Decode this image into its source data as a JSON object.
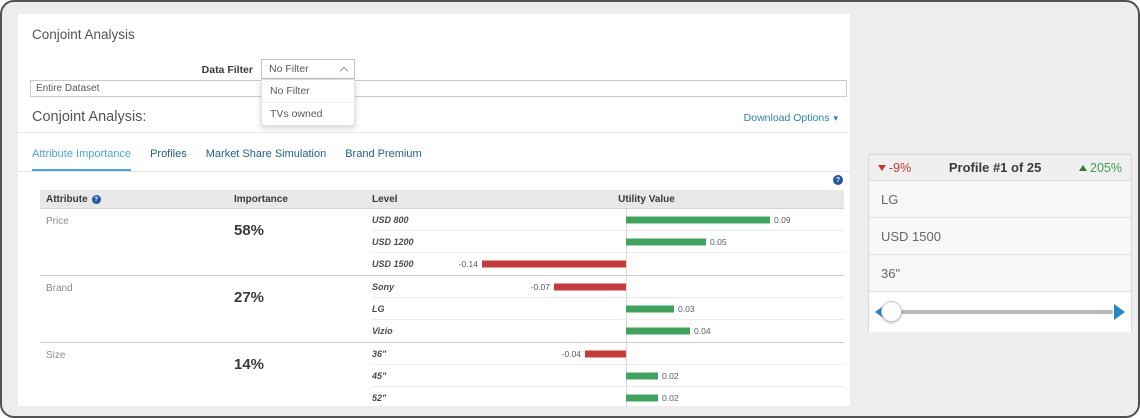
{
  "page": {
    "title": "Conjoint Analysis"
  },
  "filter": {
    "label": "Data Filter",
    "selected": "No Filter",
    "options": [
      "No Filter",
      "TVs owned"
    ]
  },
  "dataset_input": {
    "value": "Entire Dataset"
  },
  "section": {
    "heading": "Conjoint Analysis:",
    "download_label": "Download Options",
    "caret": "▾"
  },
  "tabs": [
    {
      "label": "Attribute Importance",
      "active": true
    },
    {
      "label": "Profiles",
      "active": false
    },
    {
      "label": "Market Share Simulation",
      "active": false
    },
    {
      "label": "Brand Premium",
      "active": false
    }
  ],
  "help_icon_glyph": "?",
  "table": {
    "headers": {
      "attribute": "Attribute",
      "importance": "Importance",
      "level": "Level",
      "utility": "Utility Value"
    },
    "groups": [
      {
        "attribute": "Price",
        "importance": "58%",
        "levels": [
          {
            "label": "USD 800",
            "value": 0.09
          },
          {
            "label": "USD 1200",
            "value": 0.05
          },
          {
            "label": "USD 1500",
            "value": -0.14
          }
        ]
      },
      {
        "attribute": "Brand",
        "importance": "27%",
        "levels": [
          {
            "label": "Sony",
            "value": -0.07
          },
          {
            "label": "LG",
            "value": 0.03
          },
          {
            "label": "Vizio",
            "value": 0.04
          }
        ]
      },
      {
        "attribute": "Size",
        "importance": "14%",
        "levels": [
          {
            "label": "36\"",
            "value": -0.04
          },
          {
            "label": "45\"",
            "value": 0.02
          },
          {
            "label": "52\"",
            "value": 0.02
          }
        ]
      }
    ]
  },
  "profile_panel": {
    "decrease": "-9%",
    "title": "Profile #1 of 25",
    "increase": "205%",
    "rows": [
      "LG",
      "USD 1500",
      "36\""
    ]
  },
  "colors": {
    "positive_bar": "#3fa45b",
    "negative_bar": "#c8393b",
    "accent_blue": "#2980b9",
    "tab_active": "#4aa3df",
    "decrease_red": "#c0392b",
    "increase_green": "#3e9e4f"
  }
}
